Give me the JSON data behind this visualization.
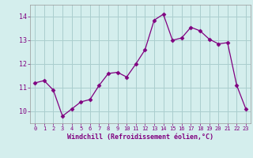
{
  "x": [
    0,
    1,
    2,
    3,
    4,
    5,
    6,
    7,
    8,
    9,
    10,
    11,
    12,
    13,
    14,
    15,
    16,
    17,
    18,
    19,
    20,
    21,
    22,
    23
  ],
  "y": [
    11.2,
    11.3,
    10.9,
    9.8,
    10.1,
    10.4,
    10.5,
    11.1,
    11.6,
    11.65,
    11.45,
    12.0,
    12.6,
    13.85,
    14.1,
    13.0,
    13.1,
    13.55,
    13.4,
    13.05,
    12.85,
    12.9,
    11.1,
    10.1
  ],
  "line_color": "#800080",
  "marker": "D",
  "marker_size": 2.5,
  "bg_color": "#d4eeed",
  "grid_color": "#aacece",
  "xlabel": "Windchill (Refroidissement éolien,°C)",
  "ylim": [
    9.5,
    14.5
  ],
  "xlim": [
    -0.5,
    23.5
  ],
  "yticks": [
    10,
    11,
    12,
    13,
    14
  ],
  "xtick_labels": [
    "0",
    "1",
    "2",
    "3",
    "4",
    "5",
    "6",
    "7",
    "8",
    "9",
    "10",
    "11",
    "12",
    "13",
    "14",
    "15",
    "16",
    "17",
    "18",
    "19",
    "20",
    "21",
    "22",
    "23"
  ],
  "tick_color": "#800080",
  "label_color": "#800080",
  "tick_fontsize": 5.0,
  "ytick_fontsize": 6.0,
  "xlabel_fontsize": 6.0
}
